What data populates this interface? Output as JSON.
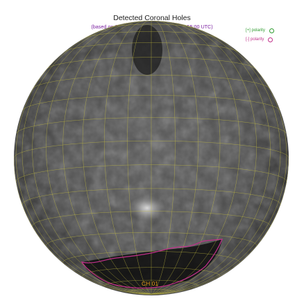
{
  "title": "Detected Coronal Holes",
  "subtitle": "(based on SDO AIA 193 at 2020 Mar 11 05:55:00 UTC)",
  "legend": {
    "positive_label": "[+] polarity",
    "negative_label": "[-] polarity",
    "positive_color": "#2e9b2e",
    "negative_color": "#c0308a"
  },
  "coronal_hole_label": "CH 01",
  "colors": {
    "grid": "#c8c040",
    "boundary": "#c0308a",
    "label": "#e39a17"
  }
}
